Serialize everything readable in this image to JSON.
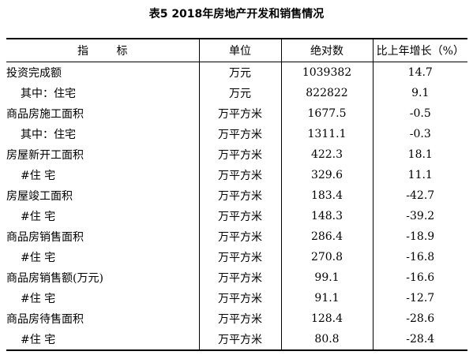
{
  "title": "表5   2018年房地产开发和销售情况",
  "table": {
    "headers": [
      "指        标",
      "单位",
      "绝对数",
      "比上年增长（%）"
    ],
    "rows": [
      {
        "name": "投资完成额",
        "unit": "万元",
        "absolute": "1039382",
        "growth": "14.7",
        "indent": false
      },
      {
        "name": "其中：住宅",
        "unit": "万元",
        "absolute": "822822",
        "growth": "9.1",
        "indent": true
      },
      {
        "name": "商品房施工面积",
        "unit": "万平方米",
        "absolute": "1677.5",
        "growth": "-0.5",
        "indent": false
      },
      {
        "name": "其中：住宅",
        "unit": "万平方米",
        "absolute": "1311.1",
        "growth": "-0.3",
        "indent": true
      },
      {
        "name": "房屋新开工面积",
        "unit": "万平方米",
        "absolute": "422.3",
        "growth": "18.1",
        "indent": false
      },
      {
        "name": "#住  宅",
        "unit": "万平方米",
        "absolute": "329.6",
        "growth": "11.1",
        "indent": true
      },
      {
        "name": "房屋竣工面积",
        "unit": "万平方米",
        "absolute": "183.4",
        "growth": "-42.7",
        "indent": false
      },
      {
        "name": "#住  宅",
        "unit": "万平方米",
        "absolute": "148.3",
        "growth": "-39.2",
        "indent": true
      },
      {
        "name": "商品房销售面积",
        "unit": "万平方米",
        "absolute": "286.4",
        "growth": "-18.9",
        "indent": false
      },
      {
        "name": "#住  宅",
        "unit": "万平方米",
        "absolute": "270.8",
        "growth": "-16.8",
        "indent": true
      },
      {
        "name": "商品房销售额(万元)",
        "unit": "万平方米",
        "absolute": "99.1",
        "growth": "-16.6",
        "indent": false
      },
      {
        "name": "#住  宅",
        "unit": "万平方米",
        "absolute": "91.1",
        "growth": "-12.7",
        "indent": true
      },
      {
        "name": "商品房待售面积",
        "unit": "万平方米",
        "absolute": "128.4",
        "growth": "-28.6",
        "indent": false
      },
      {
        "name": "#住  宅",
        "unit": "万平方米",
        "absolute": "80.8",
        "growth": "-28.4",
        "indent": true
      }
    ]
  }
}
